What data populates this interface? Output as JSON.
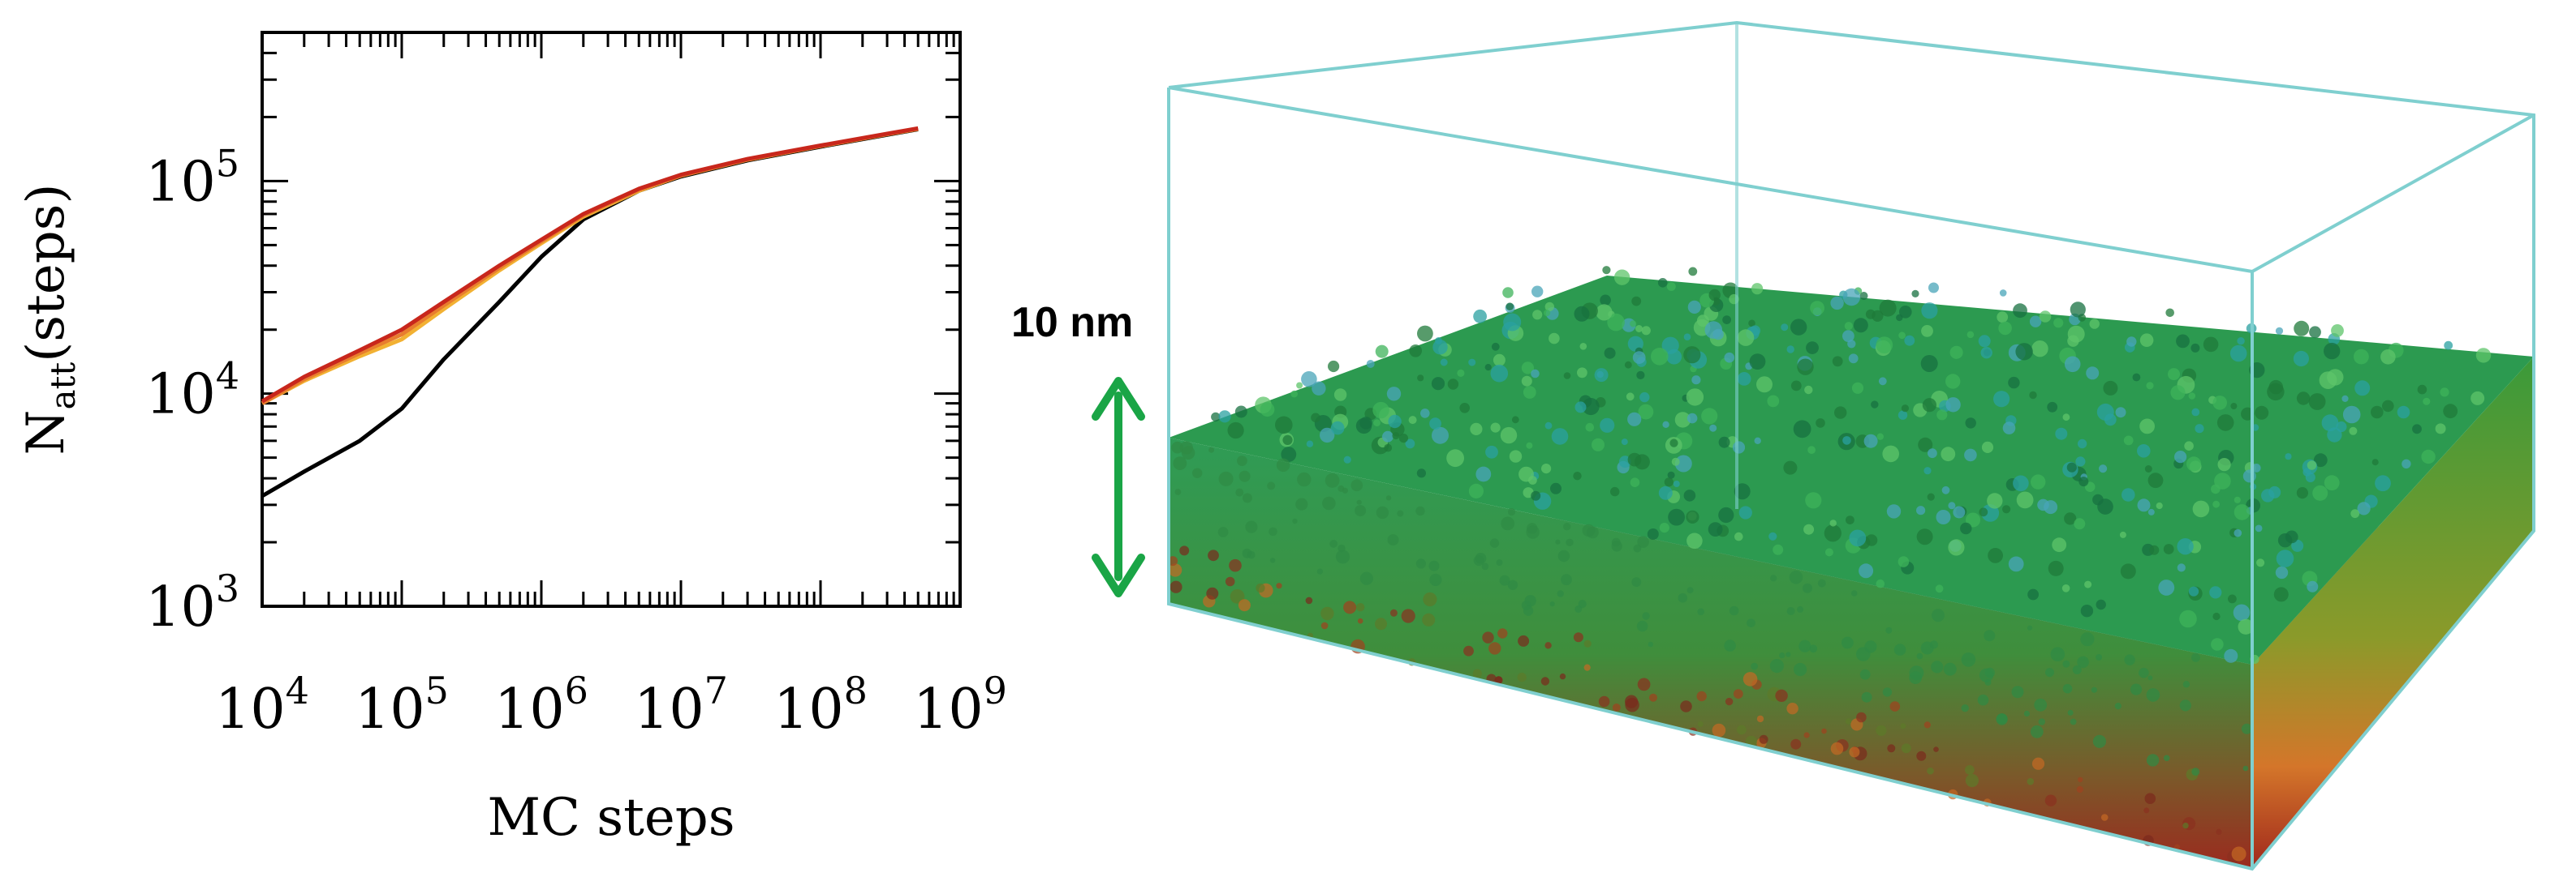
{
  "chart_data": {
    "type": "line",
    "title": "",
    "xlabel": "MC steps",
    "ylabel": {
      "main": "N",
      "sub": "att",
      "tail": "(steps)"
    },
    "xscale": "log",
    "yscale": "log",
    "xlim": [
      10000,
      1000000000
    ],
    "ylim": [
      1000,
      500000
    ],
    "grid": false,
    "legend": "none",
    "x_ticks": [
      {
        "value": 10000,
        "base": "10",
        "exp": "4"
      },
      {
        "value": 100000,
        "base": "10",
        "exp": "5"
      },
      {
        "value": 1000000,
        "base": "10",
        "exp": "6"
      },
      {
        "value": 10000000,
        "base": "10",
        "exp": "7"
      },
      {
        "value": 100000000,
        "base": "10",
        "exp": "8"
      },
      {
        "value": 1000000000,
        "base": "10",
        "exp": "9"
      }
    ],
    "y_ticks": [
      {
        "value": 1000,
        "base": "10",
        "exp": "3"
      },
      {
        "value": 10000,
        "base": "10",
        "exp": "4"
      },
      {
        "value": 100000,
        "base": "10",
        "exp": "5"
      }
    ],
    "series": [
      {
        "color": "#000000",
        "x": [
          10000,
          20000,
          50000,
          100000,
          200000,
          500000,
          1000000,
          2000000,
          5000000,
          10000000,
          30000000,
          100000000,
          300000000,
          500000000
        ],
        "y": [
          3300,
          4300,
          6000,
          8500,
          14500,
          27000,
          44000,
          66000,
          90000,
          105000,
          125000,
          145000,
          165000,
          175000
        ]
      },
      {
        "color": "#f2b133",
        "x": [
          10000,
          20000,
          50000,
          100000,
          200000,
          500000,
          1000000,
          2000000,
          5000000,
          10000000,
          30000000,
          100000000,
          300000000,
          500000000
        ],
        "y": [
          9000,
          11500,
          15000,
          18000,
          25000,
          38000,
          51000,
          68000,
          90000,
          106000,
          126000,
          146000,
          166000,
          176000
        ]
      },
      {
        "color": "#e87d2e",
        "x": [
          10000,
          20000,
          50000,
          100000,
          200000,
          500000,
          1000000,
          2000000,
          5000000,
          10000000,
          30000000,
          100000000,
          300000000,
          500000000
        ],
        "y": [
          9000,
          11700,
          15500,
          19000,
          26000,
          39000,
          52000,
          69000,
          91000,
          106000,
          126000,
          146000,
          166000,
          176000
        ]
      },
      {
        "color": "#c8271c",
        "x": [
          10000,
          20000,
          50000,
          100000,
          200000,
          500000,
          1000000,
          2000000,
          5000000,
          10000000,
          30000000,
          100000000,
          300000000,
          500000000
        ],
        "y": [
          9200,
          12000,
          16000,
          20000,
          27000,
          40000,
          53000,
          70000,
          92000,
          107000,
          127000,
          147000,
          167000,
          177000
        ]
      }
    ]
  },
  "scale_bar": {
    "label": "10 nm",
    "color": "#1aa546"
  },
  "colors": {
    "box_edge": "#7fcfcf",
    "substrate": "#bdbdbd",
    "top_film": "#2f9c56",
    "bottom_film": "#b02a1e"
  }
}
